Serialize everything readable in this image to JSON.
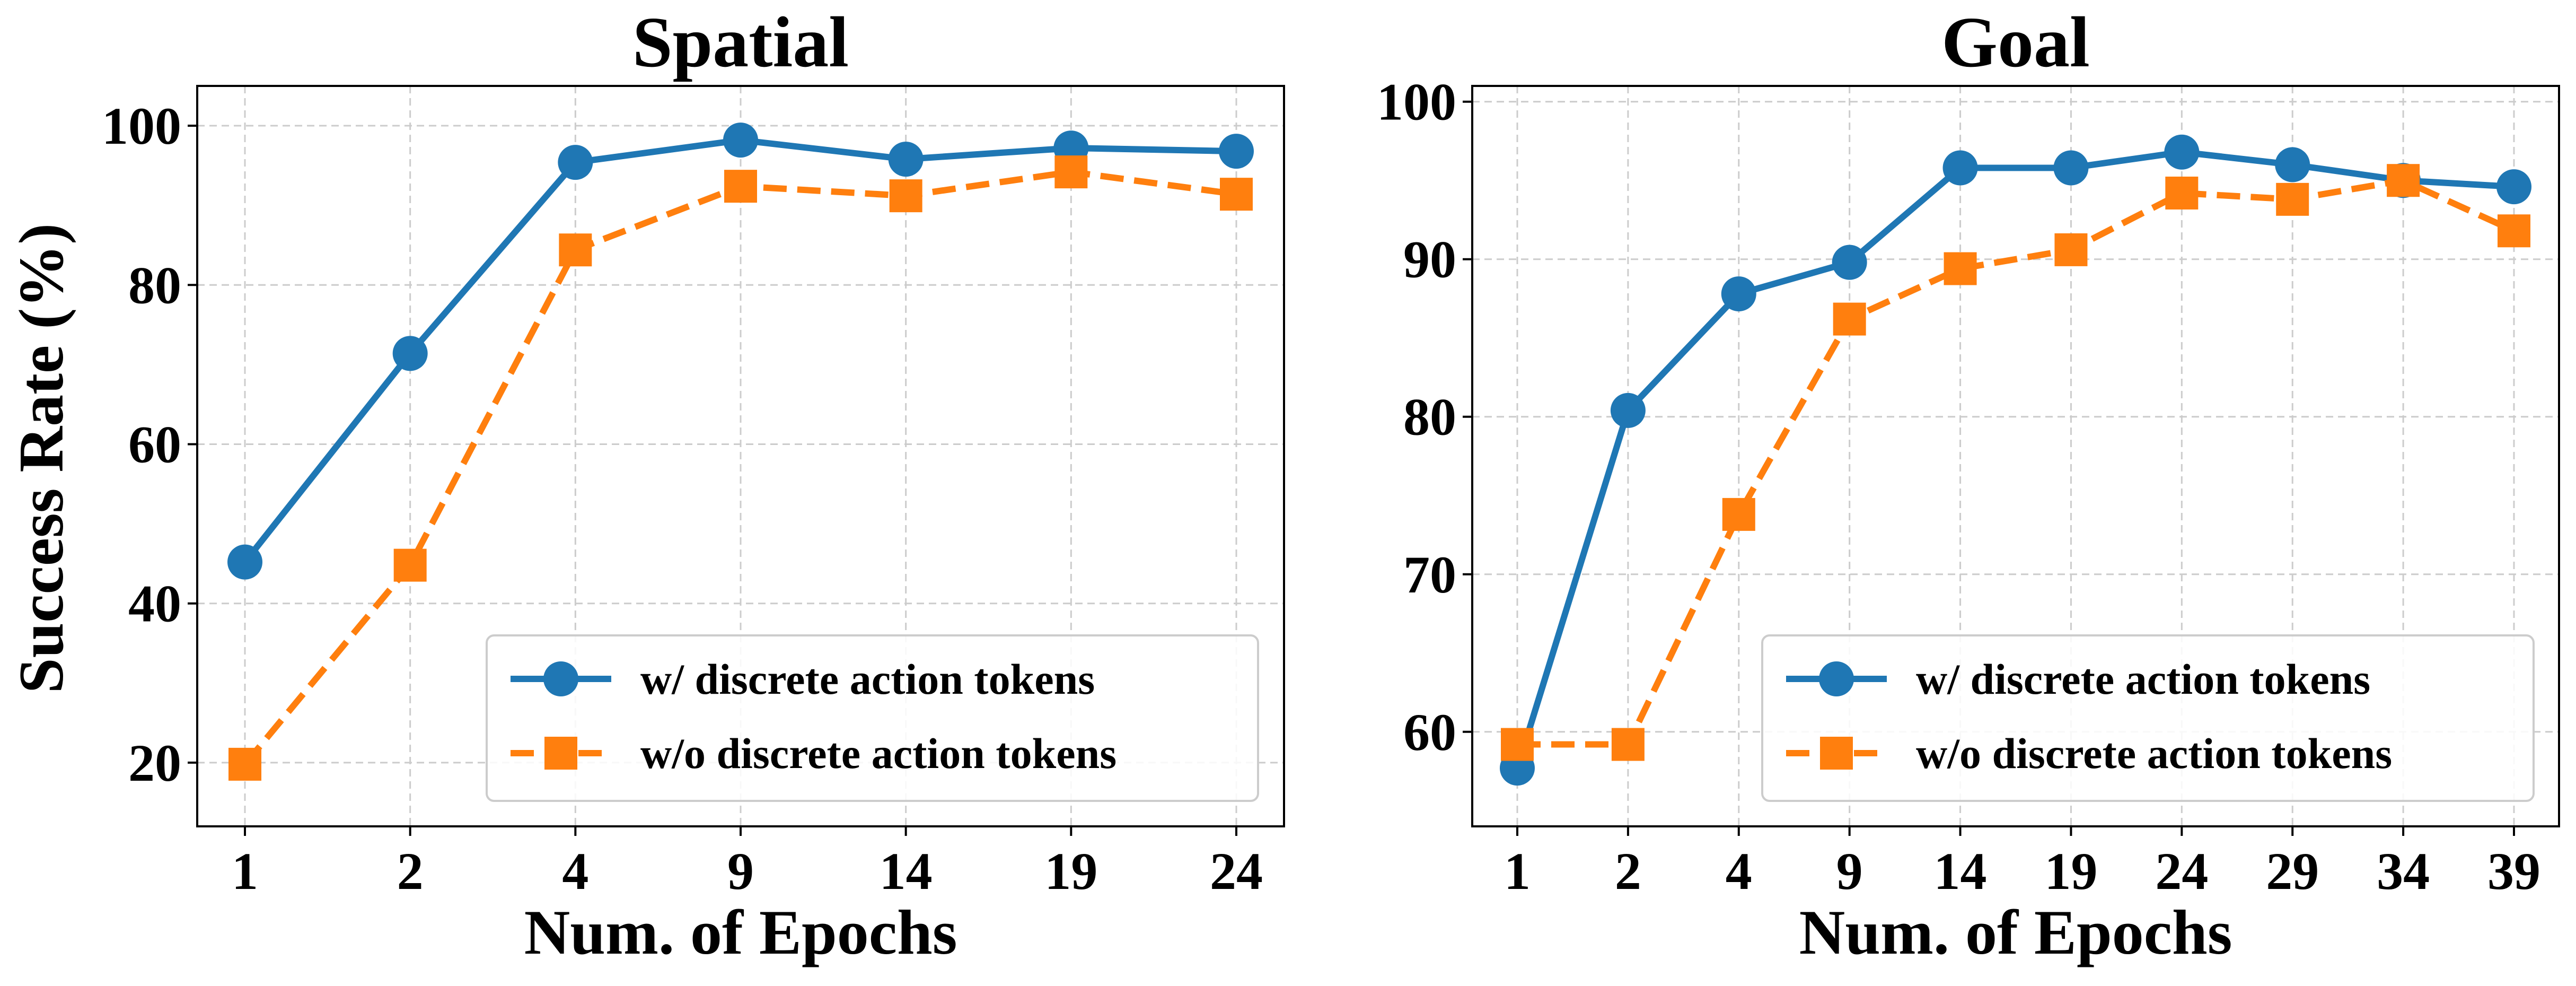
{
  "colors": {
    "series1": "#1f77b4",
    "series2": "#ff7f0e"
  },
  "chart_data": [
    {
      "type": "line",
      "title": "Spatial",
      "xlabel": "Num. of Epochs",
      "ylabel": "Success Rate (%)",
      "x": [
        "1",
        "2",
        "4",
        "9",
        "14",
        "19",
        "24"
      ],
      "ylim": [
        12,
        105
      ],
      "yticks": [
        20,
        40,
        60,
        80,
        100
      ],
      "grid": true,
      "legend_position": "bottom-right",
      "series": [
        {
          "name": "w/ discrete action tokens",
          "marker": "circle",
          "linestyle": "solid",
          "color": "#1f77b4",
          "values": [
            45.2,
            71.4,
            95.4,
            98.2,
            95.8,
            97.2,
            96.8
          ]
        },
        {
          "name": "w/o discrete action tokens",
          "marker": "square",
          "linestyle": "dashed",
          "color": "#ff7f0e",
          "values": [
            19.8,
            44.8,
            84.4,
            92.4,
            91.2,
            94.2,
            91.4
          ]
        }
      ]
    },
    {
      "type": "line",
      "title": "Goal",
      "xlabel": "Num. of Epochs",
      "ylabel": "",
      "x": [
        "1",
        "2",
        "4",
        "9",
        "14",
        "19",
        "24",
        "29",
        "34",
        "39"
      ],
      "ylim": [
        54,
        101
      ],
      "yticks": [
        60,
        70,
        80,
        90,
        100
      ],
      "grid": true,
      "legend_position": "bottom-right",
      "series": [
        {
          "name": "w/ discrete action tokens",
          "marker": "circle",
          "linestyle": "solid",
          "color": "#1f77b4",
          "values": [
            57.7,
            80.4,
            87.8,
            89.8,
            95.8,
            95.8,
            96.8,
            96.0,
            95.0,
            94.6
          ]
        },
        {
          "name": "w/o discrete action tokens",
          "marker": "square",
          "linestyle": "dashed",
          "color": "#ff7f0e",
          "values": [
            59.2,
            59.2,
            73.8,
            86.2,
            89.4,
            90.6,
            94.2,
            93.8,
            95.0,
            91.8
          ]
        }
      ]
    }
  ]
}
